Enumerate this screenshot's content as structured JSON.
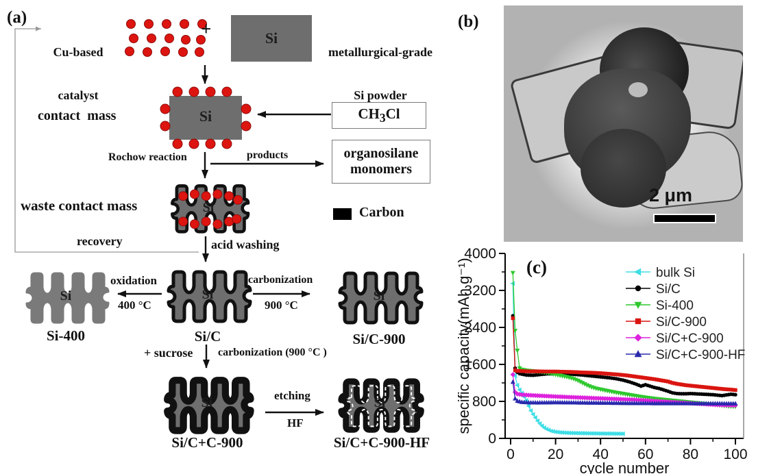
{
  "panel_labels": {
    "a": "(a)",
    "b": "(b)",
    "c": "(c)"
  },
  "diagram": {
    "si": "Si",
    "cu_catalyst_line1": "Cu-based",
    "cu_catalyst_line2": "catalyst",
    "plus": "+",
    "metallurgical_line1": "metallurgical-grade",
    "metallurgical_line2": "Si powder",
    "contact_mass": "contact  mass",
    "ch3cl_pre": "CH",
    "ch3cl_sub": "3",
    "ch3cl_post": "Cl",
    "rochow": "Rochow reaction",
    "products": "products",
    "organosilane_line1": "organosilane",
    "organosilane_line2": "monomers",
    "waste_contact_mass": "waste contact mass",
    "carbon_legend": "Carbon",
    "recovery": "recovery",
    "acid_washing": "acid washing",
    "oxidation": "oxidation",
    "oxidation_temp": "400 °C",
    "carbonization": "carbonization",
    "carbonization_temp": "900 °C",
    "si400": "Si-400",
    "sic": "Si/C",
    "sic900": "Si/C-900",
    "plus_sucrose": "+ sucrose",
    "carbonization2": "carbonization (900 °C )",
    "sicc900": "Si/C+C-900",
    "etching": "etching",
    "hf": "HF",
    "sicc900hf": "Si/C+C-900-HF",
    "colors": {
      "silicon_gray": "#6e6e6e",
      "catalyst_red": "#dd1510",
      "carbon_black": "#000000"
    }
  },
  "tem": {
    "scale_bar": "2 μm"
  },
  "chart_data": {
    "type": "line",
    "title": "(c)",
    "xlabel": "cycle number",
    "ylabel": "specific capacity(mAh g⁻¹)",
    "xlim": [
      0,
      100
    ],
    "ylim": [
      0,
      4000
    ],
    "xticks": [
      0,
      20,
      40,
      60,
      80,
      100
    ],
    "yticks": [
      0,
      800,
      1600,
      2400,
      3200,
      4000
    ],
    "grid": false,
    "legend_position": "upper right",
    "series": [
      {
        "name": "bulk Si",
        "color": "#3fdde6",
        "marker": "triangle-left",
        "points": [
          [
            1,
            3350
          ],
          [
            2,
            1350
          ],
          [
            3,
            1150
          ],
          [
            4,
            1050
          ],
          [
            5,
            980
          ],
          [
            6,
            900
          ],
          [
            7,
            820
          ],
          [
            8,
            700
          ],
          [
            9,
            600
          ],
          [
            10,
            520
          ],
          [
            11,
            450
          ],
          [
            12,
            380
          ],
          [
            13,
            320
          ],
          [
            14,
            270
          ],
          [
            15,
            230
          ],
          [
            16,
            200
          ],
          [
            17,
            180
          ],
          [
            18,
            160
          ],
          [
            20,
            140
          ],
          [
            22,
            130
          ],
          [
            25,
            120
          ],
          [
            28,
            115
          ],
          [
            32,
            112
          ],
          [
            36,
            108
          ],
          [
            40,
            105
          ],
          [
            45,
            103
          ],
          [
            50,
            100
          ]
        ]
      },
      {
        "name": "Si/C",
        "color": "#000000",
        "marker": "circle",
        "points": [
          [
            1,
            2650
          ],
          [
            2,
            1520
          ],
          [
            3,
            1430
          ],
          [
            4,
            1400
          ],
          [
            5,
            1390
          ],
          [
            7,
            1370
          ],
          [
            10,
            1365
          ],
          [
            13,
            1380
          ],
          [
            16,
            1395
          ],
          [
            20,
            1400
          ],
          [
            24,
            1395
          ],
          [
            28,
            1385
          ],
          [
            32,
            1370
          ],
          [
            36,
            1350
          ],
          [
            40,
            1330
          ],
          [
            44,
            1310
          ],
          [
            47,
            1290
          ],
          [
            50,
            1260
          ],
          [
            53,
            1220
          ],
          [
            56,
            1170
          ],
          [
            58,
            1130
          ],
          [
            60,
            1160
          ],
          [
            62,
            1130
          ],
          [
            64,
            1100
          ],
          [
            66,
            1080
          ],
          [
            68,
            1050
          ],
          [
            70,
            1020
          ],
          [
            72,
            985
          ],
          [
            74,
            970
          ],
          [
            76,
            965
          ],
          [
            78,
            965
          ],
          [
            80,
            970
          ],
          [
            82,
            965
          ],
          [
            84,
            960
          ],
          [
            86,
            955
          ],
          [
            88,
            950
          ],
          [
            90,
            945
          ],
          [
            92,
            935
          ],
          [
            94,
            925
          ],
          [
            96,
            940
          ],
          [
            98,
            955
          ],
          [
            100,
            945
          ]
        ]
      },
      {
        "name": "Si-400",
        "color": "#2ec82e",
        "marker": "triangle-down",
        "points": [
          [
            1,
            3580
          ],
          [
            2,
            2330
          ],
          [
            3,
            1900
          ],
          [
            4,
            1520
          ],
          [
            5,
            1490
          ],
          [
            7,
            1470
          ],
          [
            10,
            1455
          ],
          [
            13,
            1440
          ],
          [
            16,
            1420
          ],
          [
            19,
            1390
          ],
          [
            22,
            1360
          ],
          [
            25,
            1330
          ],
          [
            28,
            1290
          ],
          [
            30,
            1250
          ],
          [
            32,
            1200
          ],
          [
            34,
            1150
          ],
          [
            36,
            1110
          ],
          [
            38,
            1080
          ],
          [
            40,
            1060
          ],
          [
            43,
            1030
          ],
          [
            46,
            1000
          ],
          [
            49,
            975
          ],
          [
            52,
            950
          ],
          [
            55,
            925
          ],
          [
            58,
            900
          ],
          [
            61,
            880
          ],
          [
            64,
            860
          ],
          [
            67,
            845
          ],
          [
            70,
            830
          ],
          [
            73,
            815
          ],
          [
            76,
            800
          ],
          [
            79,
            785
          ],
          [
            82,
            770
          ],
          [
            85,
            755
          ],
          [
            88,
            740
          ],
          [
            91,
            725
          ],
          [
            94,
            710
          ],
          [
            97,
            695
          ],
          [
            100,
            690
          ]
        ]
      },
      {
        "name": "Si/C-900",
        "color": "#da1510",
        "marker": "square",
        "points": [
          [
            1,
            2600
          ],
          [
            2,
            1470
          ],
          [
            3,
            1460
          ],
          [
            5,
            1455
          ],
          [
            8,
            1450
          ],
          [
            12,
            1450
          ],
          [
            16,
            1445
          ],
          [
            20,
            1445
          ],
          [
            24,
            1440
          ],
          [
            28,
            1435
          ],
          [
            32,
            1425
          ],
          [
            36,
            1420
          ],
          [
            40,
            1410
          ],
          [
            44,
            1395
          ],
          [
            48,
            1380
          ],
          [
            52,
            1360
          ],
          [
            55,
            1340
          ],
          [
            58,
            1320
          ],
          [
            61,
            1300
          ],
          [
            64,
            1280
          ],
          [
            67,
            1255
          ],
          [
            70,
            1230
          ],
          [
            72,
            1200
          ],
          [
            74,
            1180
          ],
          [
            76,
            1165
          ],
          [
            78,
            1150
          ],
          [
            80,
            1140
          ],
          [
            83,
            1125
          ],
          [
            86,
            1110
          ],
          [
            89,
            1095
          ],
          [
            92,
            1080
          ],
          [
            95,
            1065
          ],
          [
            98,
            1055
          ],
          [
            100,
            1045
          ]
        ]
      },
      {
        "name": "Si/C+C-900",
        "color": "#dd22dd",
        "marker": "diamond",
        "points": [
          [
            1,
            1380
          ],
          [
            2,
            1000
          ],
          [
            3,
            960
          ],
          [
            5,
            945
          ],
          [
            8,
            935
          ],
          [
            12,
            925
          ],
          [
            16,
            915
          ],
          [
            20,
            905
          ],
          [
            25,
            895
          ],
          [
            30,
            885
          ],
          [
            35,
            875
          ],
          [
            40,
            865
          ],
          [
            45,
            855
          ],
          [
            50,
            845
          ],
          [
            55,
            835
          ],
          [
            60,
            820
          ],
          [
            65,
            805
          ],
          [
            70,
            790
          ],
          [
            75,
            775
          ],
          [
            80,
            760
          ],
          [
            85,
            745
          ],
          [
            90,
            730
          ],
          [
            95,
            720
          ],
          [
            100,
            715
          ]
        ]
      },
      {
        "name": "Si/C+C-900-HF",
        "color": "#2a2aad",
        "marker": "triangle-up",
        "points": [
          [
            1,
            1220
          ],
          [
            2,
            860
          ],
          [
            3,
            810
          ],
          [
            5,
            785
          ],
          [
            8,
            775
          ],
          [
            12,
            772
          ],
          [
            16,
            775
          ],
          [
            20,
            778
          ],
          [
            25,
            775
          ],
          [
            30,
            772
          ],
          [
            35,
            770
          ],
          [
            40,
            768
          ],
          [
            45,
            765
          ],
          [
            50,
            762
          ],
          [
            55,
            760
          ],
          [
            60,
            758
          ],
          [
            65,
            757
          ],
          [
            70,
            757
          ],
          [
            75,
            756
          ],
          [
            80,
            756
          ],
          [
            85,
            755
          ],
          [
            90,
            755
          ],
          [
            95,
            754
          ],
          [
            100,
            753
          ]
        ]
      }
    ]
  }
}
